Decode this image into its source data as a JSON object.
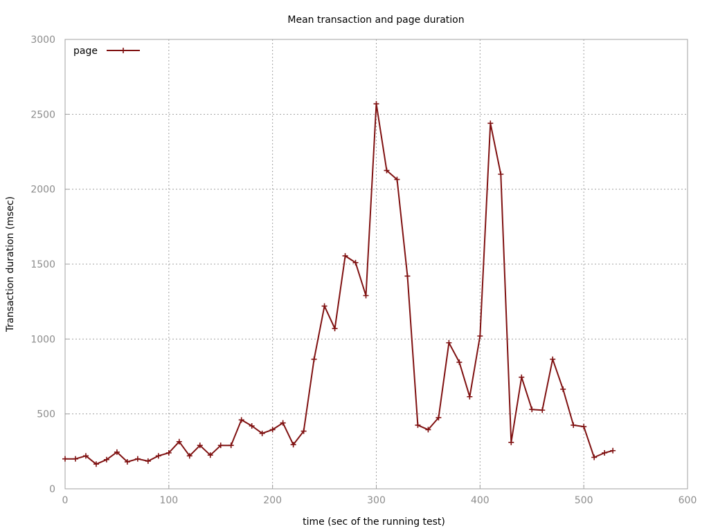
{
  "colors": {
    "series": "#7f1010",
    "axis": "#a0a0a0",
    "tick_text": "#8c8c8c"
  },
  "chart_data": {
    "type": "line",
    "title": "Mean transaction and page duration",
    "xlabel": "time (sec of the running test)",
    "ylabel": "Transaction duration (msec)",
    "xlim": [
      0,
      600
    ],
    "ylim": [
      0,
      3000
    ],
    "x_ticks": [
      0,
      100,
      200,
      300,
      400,
      500,
      600
    ],
    "y_ticks": [
      0,
      500,
      1000,
      1500,
      2000,
      2500,
      3000
    ],
    "grid": true,
    "legend_position": "top-left",
    "marker": "plus",
    "series": [
      {
        "name": "page",
        "x": [
          0,
          10,
          20,
          30,
          40,
          50,
          60,
          70,
          80,
          90,
          100,
          110,
          120,
          130,
          140,
          150,
          160,
          170,
          180,
          190,
          200,
          210,
          220,
          230,
          240,
          250,
          260,
          270,
          280,
          290,
          300,
          310,
          320,
          330,
          340,
          350,
          360,
          370,
          380,
          390,
          400,
          410,
          420,
          430,
          440,
          450,
          460,
          470,
          480,
          490,
          500,
          510,
          520,
          528
        ],
        "y": [
          200,
          200,
          220,
          165,
          195,
          245,
          180,
          200,
          185,
          220,
          240,
          315,
          220,
          290,
          225,
          290,
          290,
          460,
          420,
          370,
          395,
          440,
          295,
          385,
          865,
          1220,
          1070,
          1555,
          1510,
          1290,
          2570,
          2125,
          2065,
          1420,
          425,
          395,
          475,
          975,
          845,
          615,
          1020,
          2440,
          2100,
          310,
          745,
          530,
          525,
          865,
          665,
          425,
          415,
          210,
          240,
          255
        ]
      }
    ]
  }
}
